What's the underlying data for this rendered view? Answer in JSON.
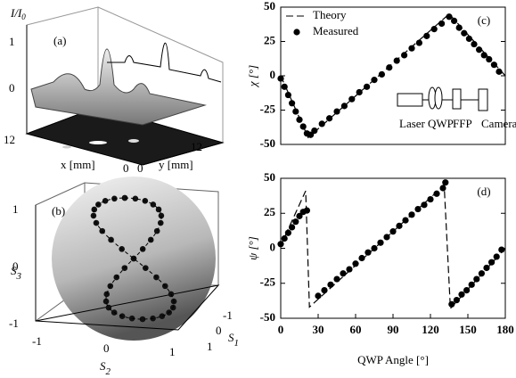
{
  "chart_data": [
    {
      "type": "line",
      "label": "(c)",
      "ylabel": "χ [°]",
      "xlim": [
        0,
        180
      ],
      "ylim": [
        -50,
        50
      ],
      "yticks": [
        -50,
        -25,
        0,
        25,
        50
      ],
      "legend": "upper-left",
      "annotations": [
        "Laser",
        "QWP",
        "FFP",
        "Camera"
      ],
      "series": [
        {
          "name": "Theory",
          "mode": "line",
          "dashed": true,
          "color": "#000000",
          "x": [
            0,
            22,
            135,
            180
          ],
          "values": [
            0,
            -45,
            45,
            0
          ]
        },
        {
          "name": "Measured",
          "mode": "markers",
          "color": "#000000",
          "x": [
            0,
            3,
            6,
            9,
            12,
            15,
            18,
            21,
            24,
            27,
            33,
            39,
            45,
            51,
            57,
            63,
            69,
            75,
            81,
            87,
            93,
            99,
            105,
            111,
            117,
            123,
            129,
            135,
            139,
            143,
            147,
            151,
            155,
            159,
            163,
            167,
            171,
            175
          ],
          "values": [
            -2,
            -8,
            -14,
            -20,
            -26,
            -32,
            -37,
            -42,
            -43,
            -40,
            -35,
            -31,
            -26,
            -22,
            -17,
            -12,
            -8,
            -3,
            1,
            6,
            11,
            15,
            20,
            24,
            29,
            34,
            38,
            43,
            40,
            35,
            31,
            27,
            23,
            19,
            15,
            12,
            8,
            3
          ]
        }
      ]
    },
    {
      "type": "line",
      "label": "(d)",
      "ylabel": "ψ [°]",
      "xlabel": "QWP Angle [°]",
      "xlim": [
        0,
        180
      ],
      "xticks": [
        0,
        30,
        60,
        90,
        120,
        150,
        180
      ],
      "ylim": [
        -50,
        50
      ],
      "yticks": [
        -50,
        -25,
        0,
        25,
        50
      ],
      "series": [
        {
          "name": "Theory",
          "mode": "line",
          "dashed": true,
          "color": "#000000",
          "x": [
            0,
            20,
            23,
            131,
            136,
            180
          ],
          "values": [
            2,
            41,
            -42,
            45,
            -43,
            0
          ]
        },
        {
          "name": "Measured",
          "mode": "markers",
          "color": "#000000",
          "x": [
            0,
            3,
            6,
            9,
            12,
            15,
            18,
            21,
            30,
            35,
            40,
            45,
            50,
            55,
            60,
            65,
            70,
            75,
            80,
            85,
            90,
            95,
            100,
            105,
            110,
            115,
            120,
            125,
            130,
            132,
            137,
            141,
            145,
            149,
            153,
            157,
            161,
            165,
            169,
            173,
            177
          ],
          "values": [
            3,
            7,
            11,
            15,
            19,
            23,
            26,
            27,
            -34,
            -30,
            -26,
            -22,
            -18,
            -15,
            -11,
            -7,
            -3,
            0,
            4,
            8,
            12,
            16,
            20,
            24,
            28,
            31,
            35,
            39,
            43,
            47,
            -40,
            -37,
            -33,
            -30,
            -26,
            -22,
            -18,
            -14,
            -10,
            -6,
            -1
          ]
        }
      ]
    }
  ],
  "panel_a": {
    "label": "(a)",
    "zlabel": {
      "text": "I/I",
      "sub": "0"
    },
    "zticks": [
      "1",
      "0"
    ],
    "xticks": [
      "12",
      "0"
    ],
    "yticks": [
      "12",
      "0"
    ],
    "xlabel": "x [mm]",
    "ylabel": "y [mm]"
  },
  "panel_b": {
    "label": "(b)",
    "s3": {
      "text": "S",
      "sub": "3"
    },
    "s2": {
      "text": "S",
      "sub": "2"
    },
    "s1": {
      "text": "S",
      "sub": "1"
    },
    "s3ticks": [
      "1",
      "0",
      "-1"
    ],
    "s2ticks": [
      "-1",
      "0",
      "1"
    ],
    "s1ticks": [
      "-1",
      "0",
      "1"
    ]
  }
}
